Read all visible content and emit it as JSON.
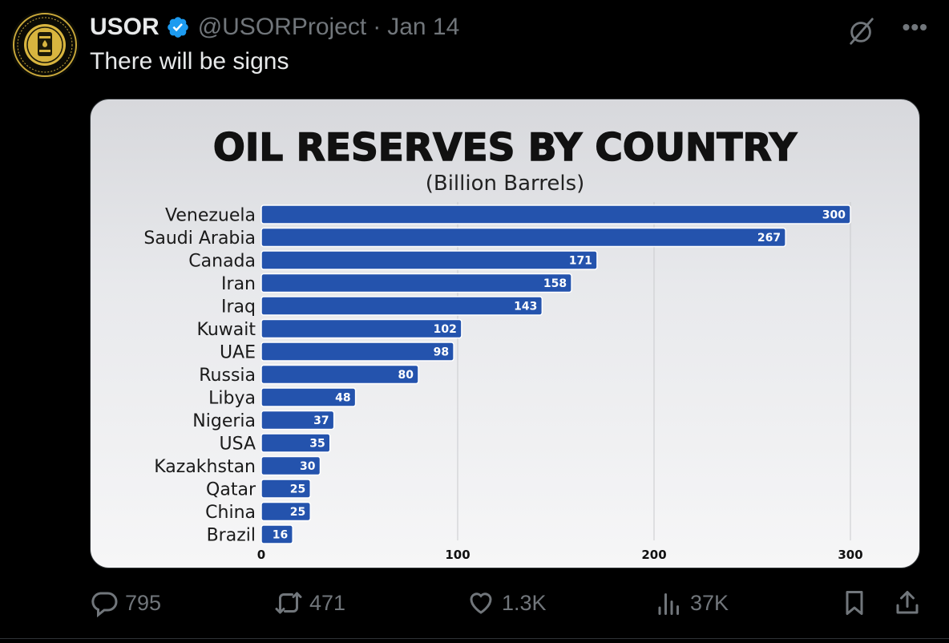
{
  "tweet": {
    "author_name": "USOR",
    "handle": "@USORProject",
    "separator": "·",
    "date": "Jan 14",
    "text": "There will be signs"
  },
  "actions": {
    "replies": "795",
    "reposts": "471",
    "likes": "1.3K",
    "views": "37K"
  },
  "icons": {
    "verified": "verified-badge-icon",
    "grok": "grok-icon",
    "more": "more-icon",
    "reply": "reply-icon",
    "repost": "repost-icon",
    "like": "heart-icon",
    "views": "views-icon",
    "bookmark": "bookmark-icon",
    "share": "share-icon"
  },
  "colors": {
    "bar": "#2453ad",
    "verified": "#1d9bf0",
    "muted": "#71767b"
  },
  "chart_data": {
    "type": "bar",
    "orientation": "horizontal",
    "title": "OIL RESERVES BY COUNTRY",
    "subtitle": "(Billion Barrels)",
    "categories": [
      "Venezuela",
      "Saudi Arabia",
      "Canada",
      "Iran",
      "Iraq",
      "Kuwait",
      "UAE",
      "Russia",
      "Libya",
      "Nigeria",
      "USA",
      "Kazakhstan",
      "Qatar",
      "China",
      "Brazil"
    ],
    "values": [
      300,
      267,
      171,
      158,
      143,
      102,
      98,
      80,
      48,
      37,
      35,
      30,
      25,
      25,
      16
    ],
    "xlim": [
      0,
      300
    ],
    "xticks": [
      0,
      100,
      200,
      300
    ],
    "grid": true
  }
}
